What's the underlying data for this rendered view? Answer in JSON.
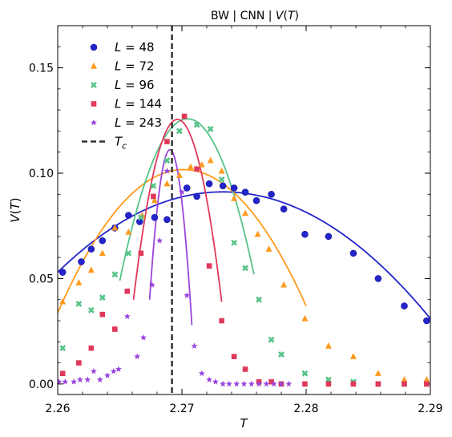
{
  "chart_data": {
    "type": "scatter",
    "title": "BW | CNN | V(T)",
    "xlabel": "T",
    "ylabel": "V(T)",
    "xlim": [
      2.26,
      2.29
    ],
    "ylim": [
      -0.005,
      0.17
    ],
    "xticks": [
      "2.26",
      "2.27",
      "2.28",
      "2.29"
    ],
    "yticks": [
      "0.00",
      "0.05",
      "0.10",
      "0.15"
    ],
    "xtick_values": [
      2.26,
      2.27,
      2.28,
      2.29
    ],
    "ytick_values": [
      0.0,
      0.05,
      0.1,
      0.15
    ],
    "grid": false,
    "legend_position": "top-left",
    "critical_line": {
      "x": 2.2692,
      "label": "T_c",
      "color": "#333333",
      "style": "dashed"
    },
    "series": [
      {
        "name": "L = 48",
        "color": "#2424cc",
        "marker": "circle",
        "x": [
          2.2604,
          2.2619,
          2.2627,
          2.2636,
          2.2646,
          2.2657,
          2.2666,
          2.2678,
          2.2688,
          2.2704,
          2.2712,
          2.2722,
          2.2733,
          2.2742,
          2.2751,
          2.276,
          2.2772,
          2.2782,
          2.2799,
          2.2818,
          2.2838,
          2.2858,
          2.2879,
          2.2897
        ],
        "y": [
          0.053,
          0.058,
          0.064,
          0.068,
          0.074,
          0.08,
          0.077,
          0.079,
          0.078,
          0.093,
          0.089,
          0.095,
          0.094,
          0.093,
          0.091,
          0.087,
          0.09,
          0.083,
          0.071,
          0.07,
          0.062,
          0.05,
          0.037,
          0.03
        ],
        "fit_x": [
          2.26,
          2.2725,
          2.29
        ],
        "fit_y": [
          0.053,
          0.091,
          0.031
        ]
      },
      {
        "name": "L = 72",
        "color": "#ff9a1e",
        "marker": "triangle",
        "x": [
          2.2604,
          2.2617,
          2.2627,
          2.2636,
          2.2646,
          2.2657,
          2.2668,
          2.2678,
          2.2688,
          2.2698,
          2.2707,
          2.2716,
          2.2723,
          2.2732,
          2.2742,
          2.2751,
          2.2761,
          2.277,
          2.2782,
          2.2799,
          2.2818,
          2.2838,
          2.2858,
          2.2879,
          2.2897
        ],
        "y": [
          0.039,
          0.048,
          0.054,
          0.062,
          0.074,
          0.072,
          0.08,
          0.087,
          0.095,
          0.099,
          0.103,
          0.104,
          0.106,
          0.101,
          0.088,
          0.081,
          0.071,
          0.064,
          0.047,
          0.031,
          0.018,
          0.013,
          0.005,
          0.002,
          0.002
        ],
        "fit_x": [
          2.2598,
          2.2707,
          2.28
        ],
        "fit_y": [
          0.031,
          0.1015,
          0.037
        ]
      },
      {
        "name": "L = 96",
        "color": "#55c388",
        "marker": "x",
        "x": [
          2.2604,
          2.2617,
          2.2627,
          2.2636,
          2.2646,
          2.2657,
          2.2667,
          2.2677,
          2.2688,
          2.2698,
          2.2712,
          2.2723,
          2.2732,
          2.2742,
          2.2751,
          2.2762,
          2.2772,
          2.278,
          2.2799,
          2.2818,
          2.2838,
          2.2858,
          2.2879,
          2.2897
        ],
        "y": [
          0.017,
          0.038,
          0.035,
          0.041,
          0.052,
          0.062,
          0.079,
          0.094,
          0.106,
          0.12,
          0.123,
          0.121,
          0.097,
          0.067,
          0.055,
          0.04,
          0.021,
          0.014,
          0.005,
          0.002,
          0.001,
          0.0,
          0.0,
          0.0
        ],
        "fit_x": [
          2.265,
          2.2708,
          2.2758
        ],
        "fit_y": [
          0.049,
          0.1255,
          0.052
        ]
      },
      {
        "name": "L = 144",
        "color": "#e0385a",
        "marker": "square",
        "x": [
          2.2604,
          2.2617,
          2.2627,
          2.2636,
          2.2646,
          2.2656,
          2.2667,
          2.2677,
          2.2688,
          2.2702,
          2.2712,
          2.2722,
          2.2732,
          2.2742,
          2.2751,
          2.2762,
          2.2772,
          2.278,
          2.2799,
          2.2818,
          2.2838,
          2.2858,
          2.2879,
          2.2897
        ],
        "y": [
          0.005,
          0.01,
          0.017,
          0.033,
          0.026,
          0.044,
          0.062,
          0.089,
          0.115,
          0.127,
          0.102,
          0.056,
          0.03,
          0.013,
          0.007,
          0.001,
          0.001,
          0.0,
          0.0,
          0.0,
          0.0,
          0.0,
          0.0,
          0.0
        ],
        "fit_x": [
          2.2661,
          2.2697,
          2.2732
        ],
        "fit_y": [
          0.04,
          0.1255,
          0.039
        ]
      },
      {
        "name": "L = 243",
        "color": "#9944dd",
        "marker": "star",
        "x": [
          2.2601,
          2.2606,
          2.2613,
          2.2618,
          2.2624,
          2.2629,
          2.2634,
          2.264,
          2.2645,
          2.2649,
          2.2656,
          2.2664,
          2.2669,
          2.2676,
          2.2682,
          2.2688,
          2.27,
          2.2704,
          2.271,
          2.2716,
          2.2722,
          2.2727,
          2.2733,
          2.2738,
          2.2744,
          2.275,
          2.2756,
          2.2762,
          2.2768,
          2.2774,
          2.278,
          2.2786
        ],
        "y": [
          0.001,
          0.001,
          0.001,
          0.002,
          0.002,
          0.006,
          0.002,
          0.004,
          0.006,
          0.007,
          0.032,
          0.013,
          0.022,
          0.047,
          0.068,
          0.101,
          0.091,
          0.042,
          0.018,
          0.005,
          0.002,
          0.001,
          0.0,
          0.0,
          0.0,
          0.0,
          0.0,
          0.0,
          0.0,
          0.0,
          0.0,
          0.0
        ],
        "fit_x": [
          2.2674,
          2.2691,
          2.2708
        ],
        "fit_y": [
          0.04,
          0.111,
          0.028
        ]
      }
    ]
  }
}
